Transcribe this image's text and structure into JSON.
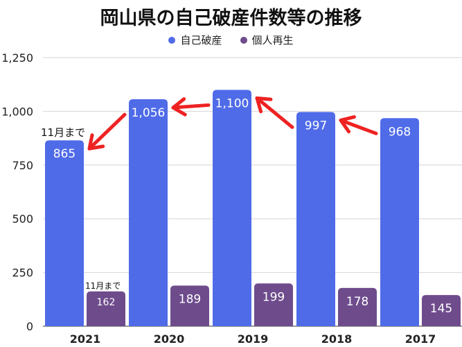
{
  "chart_data": {
    "type": "bar",
    "title": "岡山県の自己破産件数等の推移",
    "categories": [
      "2021",
      "2020",
      "2019",
      "2018",
      "2017"
    ],
    "series": [
      {
        "name": "自己破産",
        "color": "#4F6BE8",
        "values": [
          865,
          1056,
          1100,
          997,
          968
        ],
        "labels": [
          "865",
          "1,056",
          "1,100",
          "997",
          "968"
        ]
      },
      {
        "name": "個人再生",
        "color": "#6E4C8C",
        "values": [
          162,
          189,
          199,
          178,
          145
        ],
        "labels": [
          "162",
          "189",
          "199",
          "178",
          "145"
        ]
      }
    ],
    "ylim": [
      0,
      1250
    ],
    "yticks": [
      0,
      250,
      500,
      750,
      1000,
      1250
    ],
    "ytick_labels": [
      "0",
      "250",
      "500",
      "750",
      "1,000",
      "1,250"
    ],
    "grid": true,
    "legend_position": "top",
    "annotations": [
      {
        "text": "11月まで",
        "target": "自己破産 2021"
      },
      {
        "text": "11月まで",
        "target": "個人再生 2021"
      }
    ],
    "arrow_color": "#EE2222"
  }
}
